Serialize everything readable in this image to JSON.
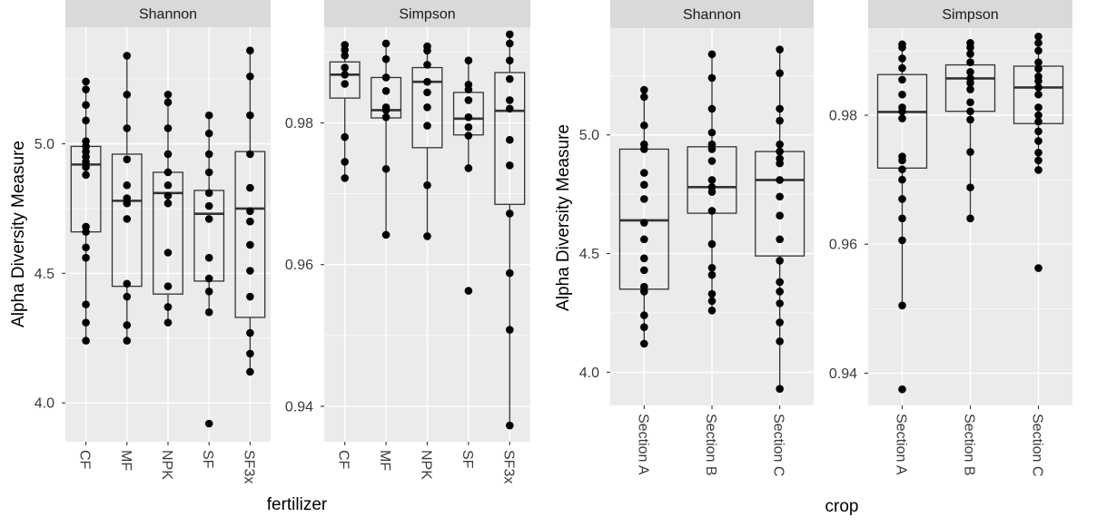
{
  "figure": {
    "colors": {
      "panel_bg": "#ebebeb",
      "strip_bg": "#d9d9d9",
      "grid": "#ffffff",
      "ink": "#333333",
      "point": "#000000"
    }
  },
  "chart_data": [
    {
      "type": "boxplot",
      "facet": "Shannon",
      "xlabel": "fertilizer",
      "ylabel": "Alpha Diversity Measure",
      "ylim": [
        3.85,
        5.45
      ],
      "y_ticks": [
        "4.0",
        "4.5",
        "5.0"
      ],
      "y_tick_values": [
        4.0,
        4.5,
        5.0
      ],
      "categories": [
        "CF",
        "MF",
        "NPK",
        "SF",
        "SF3x"
      ],
      "boxes": [
        {
          "min": 4.24,
          "q1": 4.66,
          "median": 4.92,
          "q3": 4.99,
          "max": 5.24
        },
        {
          "min": 4.24,
          "q1": 4.45,
          "median": 4.78,
          "q3": 4.96,
          "max": 5.34
        },
        {
          "min": 4.31,
          "q1": 4.42,
          "median": 4.81,
          "q3": 4.89,
          "max": 5.19
        },
        {
          "min": 4.35,
          "q1": 4.47,
          "median": 4.73,
          "q3": 4.82,
          "max": 5.11
        },
        {
          "min": 4.12,
          "q1": 4.33,
          "median": 4.75,
          "q3": 4.97,
          "max": 5.36
        }
      ],
      "points": [
        [
          5.24,
          5.21,
          5.15,
          5.09,
          5.01,
          4.99,
          4.97,
          4.95,
          4.93,
          4.91,
          4.88,
          4.68,
          4.66,
          4.6,
          4.56,
          4.38,
          4.31,
          4.24
        ],
        [
          5.34,
          5.19,
          5.06,
          4.94,
          4.84,
          4.79,
          4.77,
          4.71,
          4.46,
          4.41,
          4.3,
          4.24
        ],
        [
          5.19,
          5.16,
          5.06,
          4.96,
          4.89,
          4.84,
          4.8,
          4.77,
          4.58,
          4.45,
          4.37,
          4.31
        ],
        [
          5.11,
          5.04,
          4.96,
          4.89,
          4.81,
          4.76,
          4.71,
          4.56,
          4.48,
          4.43,
          4.35,
          3.92
        ],
        [
          5.36,
          5.26,
          5.11,
          4.96,
          4.83,
          4.74,
          4.7,
          4.61,
          4.51,
          4.41,
          4.27,
          4.19,
          4.12
        ]
      ]
    },
    {
      "type": "boxplot",
      "facet": "Simpson",
      "xlabel": "fertilizer",
      "ylabel": "",
      "ylim": [
        0.935,
        0.9935
      ],
      "y_ticks": [
        "0.94",
        "0.96",
        "0.98"
      ],
      "y_tick_values": [
        0.94,
        0.96,
        0.98
      ],
      "categories": [
        "CF",
        "MF",
        "NPK",
        "SF",
        "SF3x"
      ],
      "boxes": [
        {
          "min": 0.972,
          "q1": 0.9835,
          "median": 0.9868,
          "q3": 0.9886,
          "max": 0.991
        },
        {
          "min": 0.964,
          "q1": 0.9807,
          "median": 0.9818,
          "q3": 0.9864,
          "max": 0.9912
        },
        {
          "min": 0.964,
          "q1": 0.9765,
          "median": 0.9858,
          "q3": 0.9878,
          "max": 0.9908
        },
        {
          "min": 0.9734,
          "q1": 0.9783,
          "median": 0.9806,
          "q3": 0.9843,
          "max": 0.9888
        },
        {
          "min": 0.937,
          "q1": 0.9685,
          "median": 0.9817,
          "q3": 0.9871,
          "max": 0.9925
        }
      ],
      "points": [
        [
          0.991,
          0.9903,
          0.9895,
          0.9878,
          0.9868,
          0.9855,
          0.978,
          0.9745,
          0.9722
        ],
        [
          0.9912,
          0.989,
          0.9864,
          0.9845,
          0.9822,
          0.9818,
          0.9808,
          0.9735,
          0.9642
        ],
        [
          0.9908,
          0.9902,
          0.9882,
          0.9858,
          0.9843,
          0.9822,
          0.9796,
          0.9712,
          0.964
        ],
        [
          0.9888,
          0.9854,
          0.9847,
          0.9832,
          0.9808,
          0.9794,
          0.9782,
          0.9736,
          0.9563
        ],
        [
          0.9925,
          0.9912,
          0.9888,
          0.9862,
          0.9832,
          0.982,
          0.9776,
          0.974,
          0.9672,
          0.9588,
          0.9508,
          0.9373
        ]
      ]
    },
    {
      "type": "boxplot",
      "facet": "Shannon",
      "xlabel": "crop",
      "ylabel": "Alpha Diversity Measure",
      "ylim": [
        3.86,
        5.45
      ],
      "y_ticks": [
        "4.0",
        "4.5",
        "5.0"
      ],
      "y_tick_values": [
        4.0,
        4.5,
        5.0
      ],
      "categories": [
        "Section  A",
        "Section  B",
        "Section  C"
      ],
      "boxes": [
        {
          "min": 4.12,
          "q1": 4.35,
          "median": 4.64,
          "q3": 4.94,
          "max": 5.19
        },
        {
          "min": 4.26,
          "q1": 4.67,
          "median": 4.78,
          "q3": 4.95,
          "max": 5.34
        },
        {
          "min": 3.93,
          "q1": 4.49,
          "median": 4.81,
          "q3": 4.93,
          "max": 5.36
        }
      ],
      "points": [
        [
          5.19,
          5.16,
          5.04,
          4.96,
          4.94,
          4.84,
          4.79,
          4.73,
          4.63,
          4.56,
          4.48,
          4.43,
          4.36,
          4.34,
          4.24,
          4.19,
          4.12
        ],
        [
          5.34,
          5.24,
          5.11,
          5.01,
          4.96,
          4.94,
          4.89,
          4.81,
          4.78,
          4.76,
          4.68,
          4.54,
          4.44,
          4.41,
          4.33,
          4.3,
          4.26
        ],
        [
          5.36,
          5.26,
          5.11,
          5.06,
          4.96,
          4.93,
          4.9,
          4.88,
          4.81,
          4.74,
          4.66,
          4.56,
          4.47,
          4.38,
          4.34,
          4.29,
          4.21,
          4.13,
          3.93
        ]
      ]
    },
    {
      "type": "boxplot",
      "facet": "Simpson",
      "xlabel": "crop",
      "ylabel": "",
      "ylim": [
        0.935,
        0.9935
      ],
      "y_ticks": [
        "0.94",
        "0.96",
        "0.98"
      ],
      "y_tick_values": [
        0.94,
        0.96,
        0.98
      ],
      "categories": [
        "Section  A",
        "Section  B",
        "Section  C"
      ],
      "boxes": [
        {
          "min": 0.9505,
          "q1": 0.9718,
          "median": 0.9805,
          "q3": 0.9863,
          "max": 0.991
        },
        {
          "min": 0.964,
          "q1": 0.9806,
          "median": 0.9857,
          "q3": 0.9878,
          "max": 0.9912
        },
        {
          "min": 0.971,
          "q1": 0.9787,
          "median": 0.9843,
          "q3": 0.9876,
          "max": 0.9922
        }
      ],
      "points": [
        [
          0.991,
          0.9905,
          0.9888,
          0.9873,
          0.9855,
          0.9832,
          0.9812,
          0.9806,
          0.9795,
          0.9736,
          0.973,
          0.9716,
          0.97,
          0.967,
          0.964,
          0.9606,
          0.9505,
          0.9375
        ],
        [
          0.9912,
          0.9905,
          0.9895,
          0.9882,
          0.9867,
          0.9857,
          0.985,
          0.984,
          0.982,
          0.9806,
          0.9793,
          0.9743,
          0.9688,
          0.964
        ],
        [
          0.9922,
          0.9912,
          0.99,
          0.9882,
          0.9872,
          0.986,
          0.9853,
          0.9843,
          0.9832,
          0.9812,
          0.98,
          0.979,
          0.9775,
          0.976,
          0.9742,
          0.973,
          0.9715,
          0.9563
        ]
      ]
    }
  ]
}
